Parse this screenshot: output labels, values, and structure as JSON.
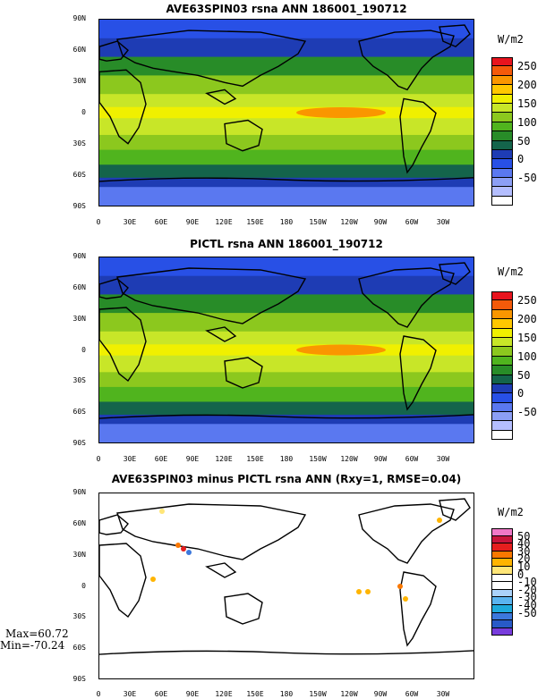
{
  "panels": [
    {
      "title": "AVE63SPIN03 rsna ANN 186001_190712",
      "unit": "W/m2",
      "colorbar": {
        "colors": [
          "#e8141e",
          "#f45a0a",
          "#fa9600",
          "#ffc800",
          "#f0f000",
          "#c8e628",
          "#8cc81e",
          "#50b41e",
          "#288c28",
          "#14644b",
          "#1e3cb4",
          "#2850e6",
          "#5a78f0",
          "#8c9ff5",
          "#b4beff",
          "#ffffff"
        ],
        "labels": [
          "250",
          "200",
          "150",
          "100",
          "50",
          "0",
          "-50"
        ]
      },
      "map_fill": "#7ab843"
    },
    {
      "title": "PICTL rsna ANN 186001_190712",
      "unit": "W/m2",
      "colorbar": {
        "colors": [
          "#e8141e",
          "#f45a0a",
          "#fa9600",
          "#ffc800",
          "#f0f000",
          "#c8e628",
          "#8cc81e",
          "#50b41e",
          "#288c28",
          "#14644b",
          "#1e3cb4",
          "#2850e6",
          "#5a78f0",
          "#8c9ff5",
          "#b4beff",
          "#ffffff"
        ],
        "labels": [
          "250",
          "200",
          "150",
          "100",
          "50",
          "0",
          "-50"
        ]
      },
      "map_fill": "#7ab843"
    },
    {
      "title": "AVE63SPIN03 minus PICTL rsna ANN (Rxy=1, RMSE=0.04)",
      "unit": "W/m2",
      "colorbar": {
        "colors": [
          "#f078c8",
          "#c8143c",
          "#e61e1e",
          "#fa7800",
          "#ffb400",
          "#ffe678",
          "#ffffff",
          "#ffffff",
          "#aad2fa",
          "#5ab4f0",
          "#1eaadc",
          "#3c78dc",
          "#285ac8",
          "#783cdc"
        ],
        "labels": [
          "50",
          "40",
          "30",
          "20",
          "10",
          "0",
          "-10",
          "-20",
          "-30",
          "-40",
          "-50"
        ]
      },
      "stats": {
        "max": "Max=60.72",
        "min": "Min=-70.24"
      }
    }
  ],
  "lat_labels": [
    "90N",
    "60N",
    "30N",
    "0",
    "30S",
    "60S",
    "90S"
  ],
  "lon_labels": [
    "0",
    "30E",
    "60E",
    "90E",
    "120E",
    "150E",
    "180",
    "150W",
    "120W",
    "90W",
    "60W",
    "30W"
  ]
}
